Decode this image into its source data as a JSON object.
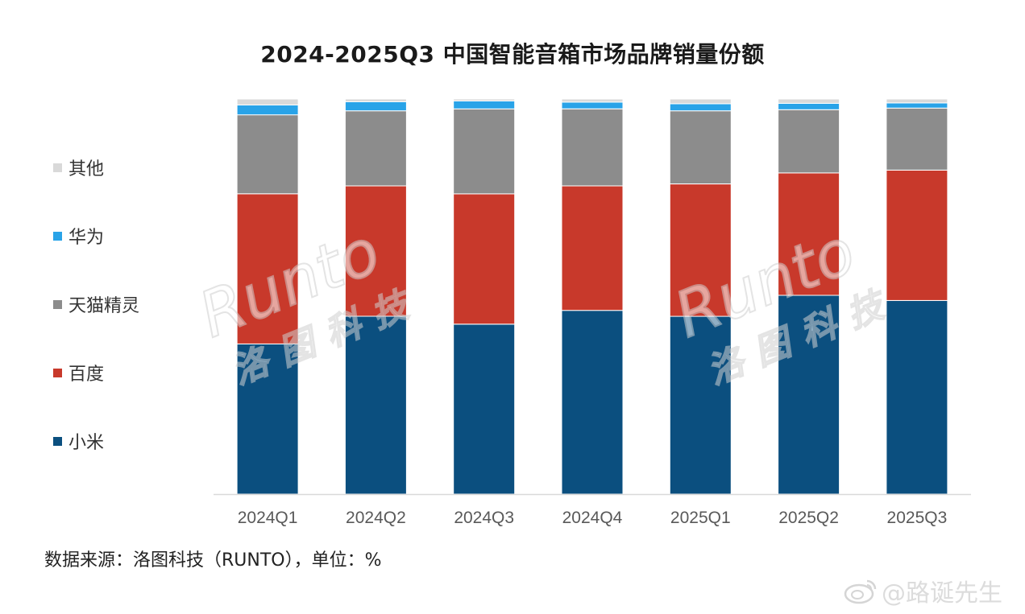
{
  "chart_data": {
    "type": "bar",
    "stacked": true,
    "title": "2024-2025Q3 中国智能音箱市场品牌销量份额",
    "categories": [
      "2024Q1",
      "2024Q2",
      "2024Q3",
      "2024Q4",
      "2025Q1",
      "2025Q2",
      "2025Q3"
    ],
    "series": [
      {
        "name": "小米",
        "color": "#0b4f7f",
        "values": [
          38.0,
          45.0,
          43.0,
          46.5,
          45.0,
          50.3,
          49.0
        ]
      },
      {
        "name": "百度",
        "color": "#c8392b",
        "values": [
          38.0,
          33.0,
          33.0,
          31.5,
          33.5,
          31.0,
          33.0
        ]
      },
      {
        "name": "天猫精灵",
        "color": "#8c8c8c",
        "values": [
          20.0,
          19.0,
          21.5,
          19.5,
          18.5,
          16.0,
          15.7
        ]
      },
      {
        "name": "华为",
        "color": "#29a3e8",
        "values": [
          2.5,
          2.3,
          2.0,
          1.7,
          1.8,
          1.6,
          1.3
        ]
      },
      {
        "name": "其他",
        "color": "#d9d9d9",
        "values": [
          1.5,
          0.7,
          0.5,
          0.8,
          1.2,
          1.1,
          1.0
        ]
      }
    ],
    "ylim": [
      0,
      100
    ],
    "legend_position": "left",
    "grid": false
  },
  "source_text": "数据来源：洛图科技（RUNTO），单位：%",
  "watermark": {
    "runto_text": "Runto",
    "runto_cn": "洛图科技",
    "weibo_handle": "@路诞先生",
    "icon": "weibo-icon"
  }
}
